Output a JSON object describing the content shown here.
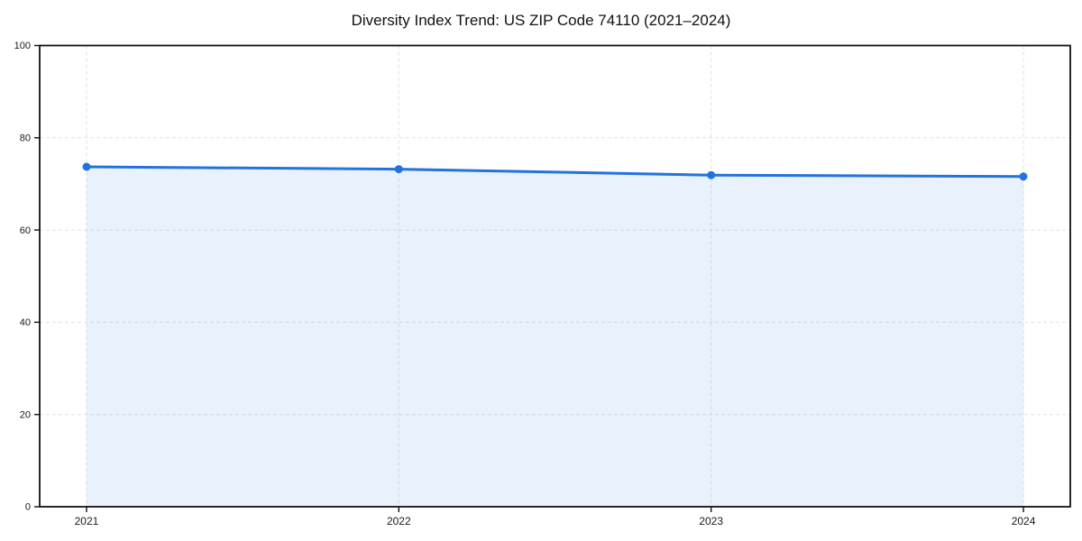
{
  "chart_data": {
    "type": "area",
    "title": "Diversity Index Trend: US ZIP Code 74110 (2021–2024)",
    "xlabel": "",
    "ylabel": "",
    "x": [
      2021,
      2022,
      2023,
      2024
    ],
    "series": [
      {
        "name": "Diversity Index",
        "values": [
          73.7,
          73.2,
          71.9,
          71.6
        ]
      }
    ],
    "xticks": [
      2021,
      2022,
      2023,
      2024
    ],
    "xtick_labels": [
      "2021",
      "2022",
      "2023",
      "2024"
    ],
    "yticks": [
      0,
      20,
      40,
      60,
      80,
      100
    ],
    "ytick_labels": [
      "0",
      "20",
      "40",
      "60",
      "80",
      "100"
    ],
    "xlim": [
      2020.85,
      2024.15
    ],
    "ylim": [
      0,
      100
    ],
    "grid": true,
    "grid_style": "dashed",
    "legend": "none",
    "marker": "circle",
    "colors": {
      "line": "#2273dd",
      "marker": "#2273dd",
      "fill": "#2273dd",
      "fill_opacity": 0.1,
      "grid": "#e1e1e1",
      "spine": "#111111",
      "tick_text": "#1a1a1a",
      "background": "#ffffff"
    }
  }
}
